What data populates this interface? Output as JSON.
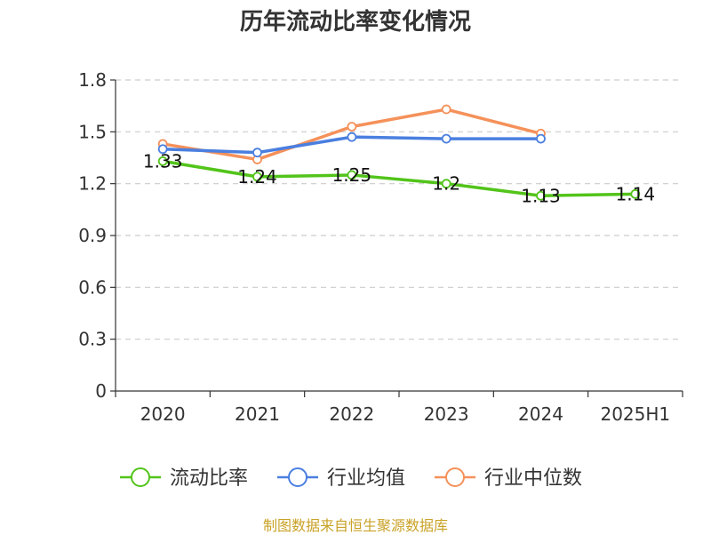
{
  "chart_data": {
    "type": "line",
    "title": "历年流动比率变化情况",
    "categories": [
      "2020",
      "2021",
      "2022",
      "2023",
      "2024",
      "2025H1"
    ],
    "ylim": [
      0,
      1.8
    ],
    "yticks": [
      0,
      0.3,
      0.6,
      0.9,
      1.2,
      1.5,
      1.8
    ],
    "ytick_labels": [
      "0",
      "0.3",
      "0.6",
      "0.9",
      "1.2",
      "1.5",
      "1.8"
    ],
    "grid": true,
    "legend_position": "bottom",
    "series": [
      {
        "name": "流动比率",
        "color": "#52c41a",
        "values": [
          1.33,
          1.24,
          1.25,
          1.2,
          1.13,
          1.14
        ],
        "data_labels": [
          "1.33",
          "1.24",
          "1.25",
          "1.2",
          "1.13",
          "1.14"
        ]
      },
      {
        "name": "行业均值",
        "color": "#4a7fe0",
        "values": [
          1.4,
          1.38,
          1.47,
          1.46,
          1.46,
          null
        ]
      },
      {
        "name": "行业中位数",
        "color": "#f5915a",
        "values": [
          1.43,
          1.34,
          1.53,
          1.63,
          1.49,
          null
        ]
      }
    ]
  },
  "footer": {
    "source": "制图数据来自恒生聚源数据库"
  }
}
